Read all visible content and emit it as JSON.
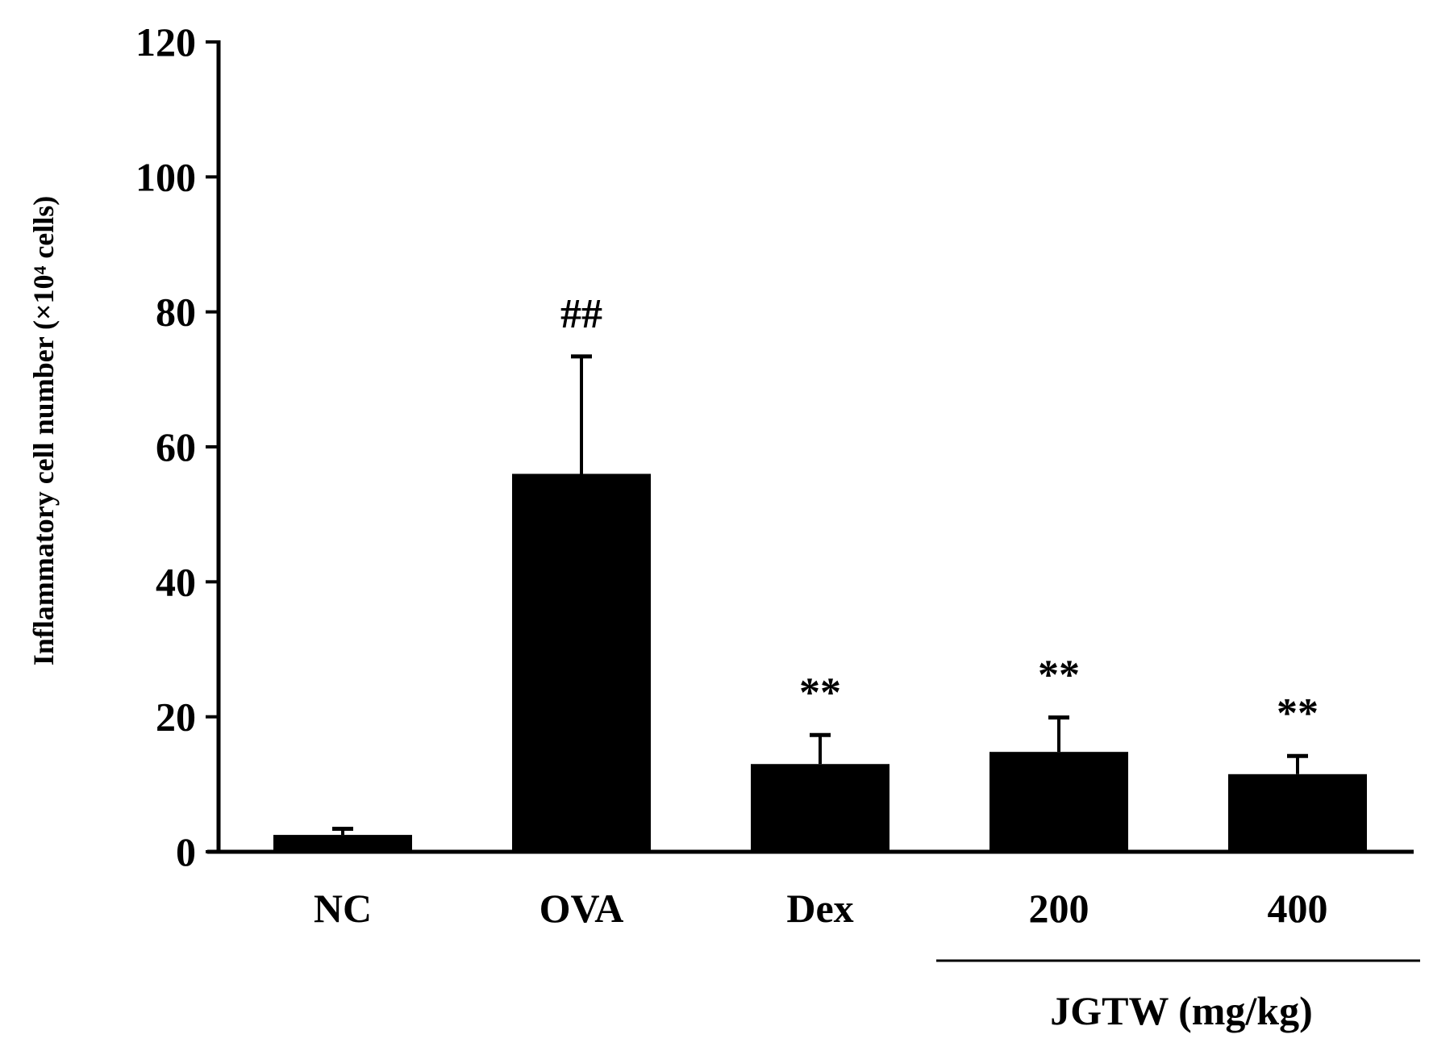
{
  "chart_data": {
    "type": "bar",
    "title": "",
    "xlabel": "",
    "ylabel": "Inflammatory cell number (×10⁴ cells)",
    "ylim": [
      0,
      120
    ],
    "yticks": [
      0,
      20,
      40,
      60,
      80,
      100,
      120
    ],
    "grid": false,
    "categories": [
      "NC",
      "OVA",
      "Dex",
      "200",
      "400"
    ],
    "values": [
      2.5,
      56,
      13,
      14.8,
      11.5
    ],
    "errors": [
      0.9,
      17.4,
      4.3,
      5.1,
      2.7
    ],
    "annotations": [
      "",
      "##",
      "**",
      "**",
      "**"
    ],
    "group": {
      "label": "JGTW (mg/kg)",
      "from_category": 3,
      "to_category": 4
    },
    "bar_color": "#000000"
  }
}
